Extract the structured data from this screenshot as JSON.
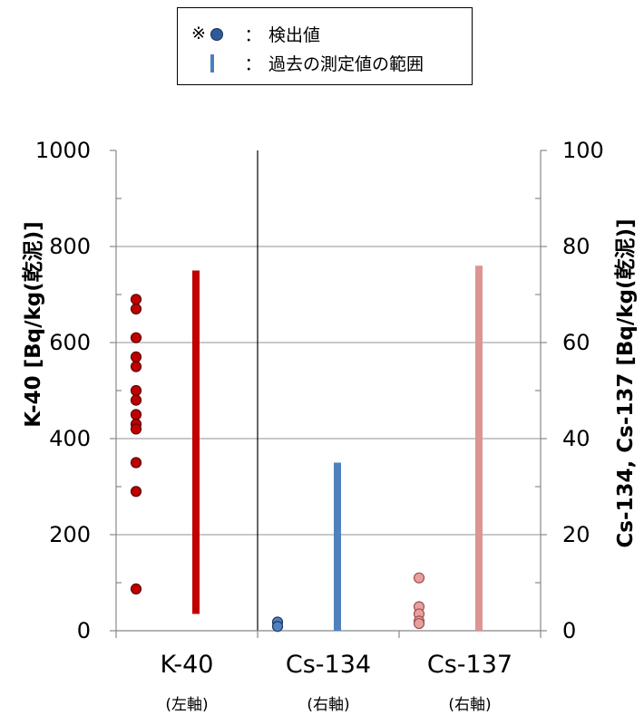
{
  "legend": {
    "note_mark": "※",
    "detected_sep": "：",
    "detected_label": "検出値",
    "range_sep": "：",
    "range_label": "過去の測定値の範囲"
  },
  "axes": {
    "left_title": "K-40 [Bq/kg(乾泥)]",
    "right_title": "Cs-134, Cs-137 [Bq/kg(乾泥)]"
  },
  "chart_data": {
    "type": "scatter",
    "categories": [
      "K-40",
      "Cs-134",
      "Cs-137"
    ],
    "category_notes": [
      "(左軸)",
      "(右軸)",
      "(右軸)"
    ],
    "y_left": {
      "min": 0,
      "max": 1000,
      "ticks": [
        0,
        200,
        400,
        600,
        800,
        1000
      ]
    },
    "y_right": {
      "min": 0,
      "max": 100,
      "ticks": [
        0,
        20,
        40,
        60,
        80,
        100
      ]
    },
    "grid": true,
    "series": [
      {
        "category": "K-40",
        "axis": "left",
        "detected": [
          690,
          670,
          610,
          570,
          550,
          500,
          480,
          450,
          430,
          420,
          350,
          290,
          87
        ],
        "range": [
          35,
          750
        ],
        "color": "#c00000",
        "stroke": "#5a0000"
      },
      {
        "category": "Cs-134",
        "axis": "right",
        "detected": [
          1.8,
          0.9
        ],
        "range": [
          0,
          35
        ],
        "color": "#4f81bd",
        "stroke": "#1f3864"
      },
      {
        "category": "Cs-137",
        "axis": "right",
        "detected": [
          11,
          5,
          3.5,
          2,
          1.5
        ],
        "range": [
          0,
          76
        ],
        "color": "#e6a0a0",
        "stroke": "#a05050",
        "range_color": "#dc9494"
      }
    ]
  }
}
